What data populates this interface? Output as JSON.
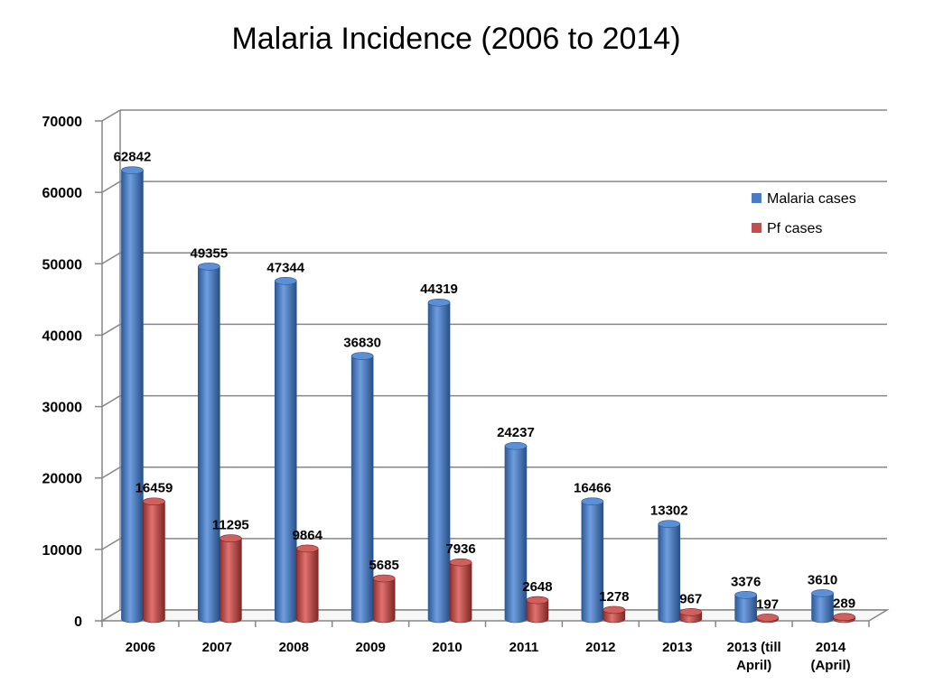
{
  "chart_data": {
    "type": "bar",
    "title": "Malaria Incidence (2006 to 2014)",
    "categories": [
      [
        "2006"
      ],
      [
        "2007"
      ],
      [
        "2008"
      ],
      [
        "2009"
      ],
      [
        "2010"
      ],
      [
        "2011"
      ],
      [
        "2012"
      ],
      [
        "2013"
      ],
      [
        "2013 (till",
        "April)"
      ],
      [
        "2014",
        "(April)"
      ]
    ],
    "series": [
      {
        "name": "Malaria cases",
        "color": "#4a7cc4",
        "values": [
          62842,
          49355,
          47344,
          36830,
          44319,
          24237,
          16466,
          13302,
          3376,
          3610
        ]
      },
      {
        "name": "Pf cases",
        "color": "#c0504d",
        "values": [
          16459,
          11295,
          9864,
          5685,
          7936,
          2648,
          1278,
          967,
          197,
          289
        ]
      }
    ],
    "ylim": [
      0,
      70000
    ],
    "yticks": [
      0,
      10000,
      20000,
      30000,
      40000,
      50000,
      60000,
      70000
    ],
    "grid": true,
    "legend_position": "top-right",
    "data_labels": true,
    "style": "3d-cylinder"
  }
}
